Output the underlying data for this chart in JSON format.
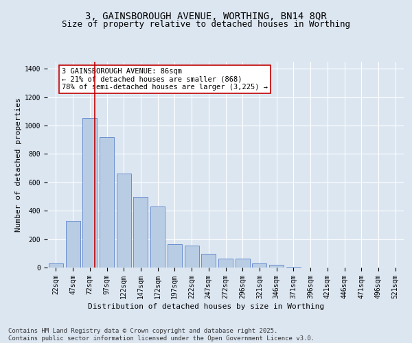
{
  "title_line1": "3, GAINSBOROUGH AVENUE, WORTHING, BN14 8QR",
  "title_line2": "Size of property relative to detached houses in Worthing",
  "xlabel": "Distribution of detached houses by size in Worthing",
  "ylabel": "Number of detached properties",
  "categories": [
    "22sqm",
    "47sqm",
    "72sqm",
    "97sqm",
    "122sqm",
    "147sqm",
    "172sqm",
    "197sqm",
    "222sqm",
    "247sqm",
    "272sqm",
    "296sqm",
    "321sqm",
    "346sqm",
    "371sqm",
    "396sqm",
    "421sqm",
    "446sqm",
    "471sqm",
    "496sqm",
    "521sqm"
  ],
  "values": [
    28,
    330,
    1055,
    920,
    660,
    500,
    430,
    165,
    155,
    95,
    65,
    65,
    28,
    20,
    5,
    2,
    0,
    0,
    0,
    0,
    0
  ],
  "bar_color": "#b8cce4",
  "bar_edge_color": "#4472c4",
  "vline_color": "#c00000",
  "annotation_text": "3 GAINSBOROUGH AVENUE: 86sqm\n← 21% of detached houses are smaller (868)\n78% of semi-detached houses are larger (3,225) →",
  "annotation_box_color": "#ffffff",
  "annotation_box_edge": "#c00000",
  "ylim": [
    0,
    1450
  ],
  "yticks": [
    0,
    200,
    400,
    600,
    800,
    1000,
    1200,
    1400
  ],
  "bg_color": "#dce6f1",
  "plot_bg_color": "#dce6f1",
  "grid_color": "#ffffff",
  "footer_text": "Contains HM Land Registry data © Crown copyright and database right 2025.\nContains public sector information licensed under the Open Government Licence v3.0.",
  "title_fontsize": 10,
  "subtitle_fontsize": 9,
  "axis_label_fontsize": 8,
  "tick_fontsize": 7,
  "annotation_fontsize": 7.5,
  "footer_fontsize": 6.5
}
